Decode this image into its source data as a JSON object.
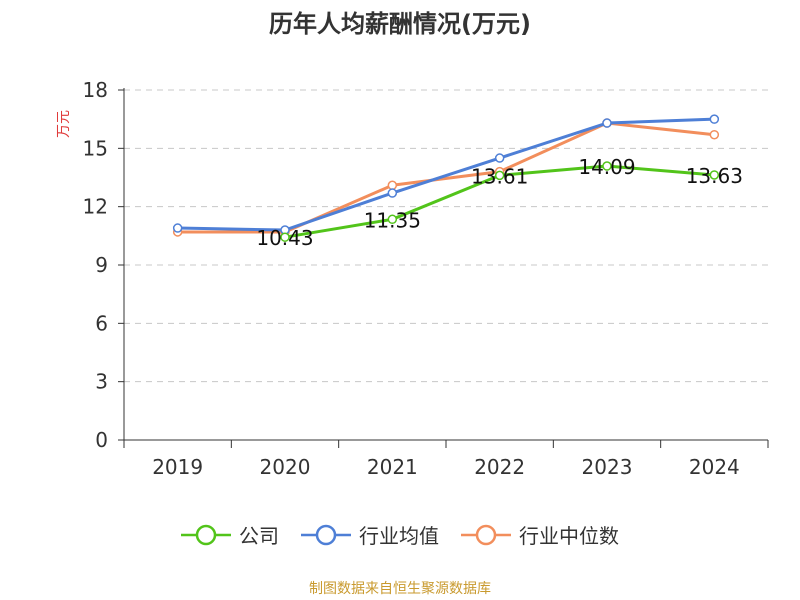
{
  "page": {
    "title": "历年人均薪酬情况(万元)",
    "source": "制图数据来自恒生聚源数据库",
    "source_color": "#c99a2e"
  },
  "chart_data": {
    "type": "line",
    "title": "历年人均薪酬情况(万元)",
    "ylabel": "万元",
    "ylabel_color": "#e03b3b",
    "xlabel": "",
    "categories": [
      "2019",
      "2020",
      "2021",
      "2022",
      "2023",
      "2024"
    ],
    "ylim": [
      0,
      18
    ],
    "yticks": [
      0,
      3,
      6,
      9,
      12,
      15,
      18
    ],
    "grid": true,
    "legend_position": "bottom",
    "series": [
      {
        "name": "公司",
        "color": "#52c41a",
        "values": [
          null,
          10.43,
          11.35,
          13.61,
          14.09,
          13.63
        ],
        "labels": [
          "",
          "10.43",
          "11.35",
          "13.61",
          "14.09",
          "13.63"
        ]
      },
      {
        "name": "行业均值",
        "color": "#4e7fd6",
        "values": [
          10.9,
          10.8,
          12.7,
          14.5,
          16.3,
          16.5
        ]
      },
      {
        "name": "行业中位数",
        "color": "#f28e5c",
        "values": [
          10.7,
          10.7,
          13.1,
          13.8,
          16.3,
          15.7
        ]
      }
    ]
  }
}
